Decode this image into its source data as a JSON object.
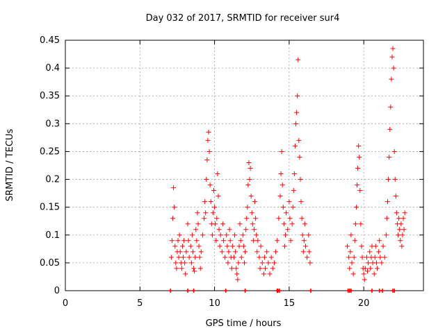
{
  "chart_data": {
    "type": "scatter",
    "title": "Day 032 of 2017, SRMTID for receiver sur4",
    "xlabel": "GPS time / hours",
    "ylabel": "SRMTID / TECUs",
    "xlim": [
      0,
      24
    ],
    "ylim": [
      0,
      0.45
    ],
    "xticks": [
      0,
      5,
      10,
      15,
      20
    ],
    "xtick_labels": [
      "0",
      "5",
      "10",
      "15",
      "20"
    ],
    "yticks": [
      0,
      0.05,
      0.1,
      0.15,
      0.2,
      0.25,
      0.3,
      0.35,
      0.4,
      0.45
    ],
    "ytick_labels": [
      "0",
      "0.05",
      "0.1",
      "0.15",
      "0.2",
      "0.25",
      "0.3",
      "0.35",
      "0.4",
      "0.45"
    ],
    "grid": true,
    "marker": "plus",
    "color": "#ff0000",
    "series": [
      {
        "name": "SRMTID",
        "points": [
          [
            7.1,
            0.06
          ],
          [
            7.15,
            0.09
          ],
          [
            7.2,
            0.13
          ],
          [
            7.25,
            0.185
          ],
          [
            7.3,
            0.15
          ],
          [
            7.35,
            0.08
          ],
          [
            7.4,
            0.05
          ],
          [
            7.45,
            0.04
          ],
          [
            7.5,
            0.07
          ],
          [
            7.55,
            0.09
          ],
          [
            7.6,
            0.06
          ],
          [
            7.65,
            0.1
          ],
          [
            7.7,
            0.07
          ],
          [
            7.75,
            0.05
          ],
          [
            7.8,
            0.04
          ],
          [
            7.85,
            0.08
          ],
          [
            7.9,
            0.06
          ],
          [
            7.95,
            0.09
          ],
          [
            8.0,
            0.05
          ],
          [
            8.05,
            0.03
          ],
          [
            8.1,
            0.07
          ],
          [
            8.2,
            0.12
          ],
          [
            8.25,
            0.09
          ],
          [
            8.3,
            0.06
          ],
          [
            8.4,
            0.08
          ],
          [
            8.45,
            0.05
          ],
          [
            8.5,
            0.1
          ],
          [
            8.55,
            0.07
          ],
          [
            8.6,
            0.04
          ],
          [
            8.65,
            0.035
          ],
          [
            8.7,
            0.06
          ],
          [
            8.75,
            0.11
          ],
          [
            8.8,
            0.09
          ],
          [
            8.85,
            0.14
          ],
          [
            8.9,
            0.12
          ],
          [
            8.95,
            0.08
          ],
          [
            9.0,
            0.06
          ],
          [
            9.05,
            0.04
          ],
          [
            9.1,
            0.07
          ],
          [
            9.2,
            0.1
          ],
          [
            9.3,
            0.13
          ],
          [
            9.35,
            0.16
          ],
          [
            9.4,
            0.14
          ],
          [
            9.45,
            0.2
          ],
          [
            9.5,
            0.235
          ],
          [
            9.55,
            0.27
          ],
          [
            9.6,
            0.285
          ],
          [
            9.65,
            0.25
          ],
          [
            9.7,
            0.19
          ],
          [
            9.75,
            0.16
          ],
          [
            9.8,
            0.12
          ],
          [
            9.85,
            0.1
          ],
          [
            9.9,
            0.14
          ],
          [
            9.95,
            0.18
          ],
          [
            10.0,
            0.15
          ],
          [
            10.05,
            0.12
          ],
          [
            10.1,
            0.09
          ],
          [
            10.15,
            0.13
          ],
          [
            10.2,
            0.21
          ],
          [
            10.25,
            0.17
          ],
          [
            10.3,
            0.11
          ],
          [
            10.35,
            0.08
          ],
          [
            10.4,
            0.1
          ],
          [
            10.5,
            0.07
          ],
          [
            10.55,
            0.12
          ],
          [
            10.6,
            0.09
          ],
          [
            10.7,
            0.06
          ],
          [
            10.8,
            0.1
          ],
          [
            10.85,
            0.08
          ],
          [
            10.9,
            0.05
          ],
          [
            10.95,
            0.07
          ],
          [
            11.0,
            0.11
          ],
          [
            11.05,
            0.09
          ],
          [
            11.1,
            0.06
          ],
          [
            11.15,
            0.04
          ],
          [
            11.2,
            0.08
          ],
          [
            11.3,
            0.06
          ],
          [
            11.35,
            0.1
          ],
          [
            11.4,
            0.07
          ],
          [
            11.45,
            0.04
          ],
          [
            11.5,
            0.03
          ],
          [
            11.55,
            0.02
          ],
          [
            11.6,
            0.05
          ],
          [
            11.65,
            0.08
          ],
          [
            11.7,
            0.12
          ],
          [
            11.75,
            0.09
          ],
          [
            11.8,
            0.06
          ],
          [
            11.9,
            0.1
          ],
          [
            11.95,
            0.08
          ],
          [
            12.0,
            0.05
          ],
          [
            12.05,
            0.07
          ],
          [
            12.1,
            0.11
          ],
          [
            12.15,
            0.13
          ],
          [
            12.2,
            0.15
          ],
          [
            12.25,
            0.19
          ],
          [
            12.3,
            0.23
          ],
          [
            12.35,
            0.2
          ],
          [
            12.4,
            0.22
          ],
          [
            12.45,
            0.17
          ],
          [
            12.5,
            0.14
          ],
          [
            12.55,
            0.12
          ],
          [
            12.6,
            0.09
          ],
          [
            12.65,
            0.11
          ],
          [
            12.7,
            0.16
          ],
          [
            12.75,
            0.13
          ],
          [
            12.8,
            0.1
          ],
          [
            12.85,
            0.07
          ],
          [
            12.9,
            0.09
          ],
          [
            13.0,
            0.06
          ],
          [
            13.05,
            0.04
          ],
          [
            13.1,
            0.08
          ],
          [
            13.2,
            0.05
          ],
          [
            13.3,
            0.03
          ],
          [
            13.35,
            0.06
          ],
          [
            13.4,
            0.04
          ],
          [
            13.5,
            0.07
          ],
          [
            13.6,
            0.05
          ],
          [
            13.7,
            0.03
          ],
          [
            13.8,
            0.06
          ],
          [
            13.9,
            0.04
          ],
          [
            14.0,
            0.05
          ],
          [
            14.1,
            0.07
          ],
          [
            14.2,
            0.09
          ],
          [
            14.3,
            0.13
          ],
          [
            14.4,
            0.17
          ],
          [
            14.45,
            0.21
          ],
          [
            14.5,
            0.25
          ],
          [
            14.55,
            0.19
          ],
          [
            14.6,
            0.15
          ],
          [
            14.65,
            0.12
          ],
          [
            14.7,
            0.08
          ],
          [
            14.75,
            0.1
          ],
          [
            14.8,
            0.14
          ],
          [
            14.9,
            0.11
          ],
          [
            15.0,
            0.16
          ],
          [
            15.05,
            0.13
          ],
          [
            15.1,
            0.09
          ],
          [
            15.2,
            0.12
          ],
          [
            15.25,
            0.15
          ],
          [
            15.3,
            0.18
          ],
          [
            15.35,
            0.21
          ],
          [
            15.4,
            0.26
          ],
          [
            15.45,
            0.3
          ],
          [
            15.5,
            0.32
          ],
          [
            15.55,
            0.35
          ],
          [
            15.6,
            0.415
          ],
          [
            15.65,
            0.27
          ],
          [
            15.7,
            0.24
          ],
          [
            15.75,
            0.2
          ],
          [
            15.8,
            0.16
          ],
          [
            15.85,
            0.13
          ],
          [
            15.9,
            0.1
          ],
          [
            15.95,
            0.07
          ],
          [
            16.0,
            0.09
          ],
          [
            16.05,
            0.12
          ],
          [
            16.1,
            0.08
          ],
          [
            16.2,
            0.06
          ],
          [
            16.3,
            0.1
          ],
          [
            16.35,
            0.07
          ],
          [
            16.4,
            0.05
          ],
          [
            18.9,
            0.08
          ],
          [
            19.0,
            0.06
          ],
          [
            19.05,
            0.04
          ],
          [
            19.1,
            0.07
          ],
          [
            19.15,
            0.1
          ],
          [
            19.2,
            0.05
          ],
          [
            19.3,
            0.03
          ],
          [
            19.35,
            0.06
          ],
          [
            19.4,
            0.09
          ],
          [
            19.45,
            0.12
          ],
          [
            19.5,
            0.15
          ],
          [
            19.55,
            0.19
          ],
          [
            19.6,
            0.22
          ],
          [
            19.65,
            0.26
          ],
          [
            19.7,
            0.24
          ],
          [
            19.75,
            0.18
          ],
          [
            19.8,
            0.12
          ],
          [
            19.85,
            0.08
          ],
          [
            19.9,
            0.06
          ],
          [
            19.95,
            0.04
          ],
          [
            20.0,
            0.03
          ],
          [
            20.05,
            0.02
          ],
          [
            20.1,
            0.04
          ],
          [
            20.2,
            0.06
          ],
          [
            20.25,
            0.035
          ],
          [
            20.3,
            0.05
          ],
          [
            20.4,
            0.07
          ],
          [
            20.45,
            0.04
          ],
          [
            20.5,
            0.06
          ],
          [
            20.55,
            0.08
          ],
          [
            20.6,
            0.05
          ],
          [
            20.7,
            0.03
          ],
          [
            20.75,
            0.06
          ],
          [
            20.8,
            0.08
          ],
          [
            20.85,
            0.05
          ],
          [
            20.9,
            0.04
          ],
          [
            21.0,
            0.07
          ],
          [
            21.05,
            0.09
          ],
          [
            21.1,
            0.06
          ],
          [
            21.2,
            0.05
          ],
          [
            21.3,
            0.08
          ],
          [
            21.4,
            0.06
          ],
          [
            21.5,
            0.1
          ],
          [
            21.55,
            0.13
          ],
          [
            21.6,
            0.16
          ],
          [
            21.65,
            0.2
          ],
          [
            21.7,
            0.24
          ],
          [
            21.75,
            0.29
          ],
          [
            21.8,
            0.33
          ],
          [
            21.85,
            0.38
          ],
          [
            21.9,
            0.42
          ],
          [
            21.95,
            0.435
          ],
          [
            22.0,
            0.4
          ],
          [
            22.05,
            0.25
          ],
          [
            22.1,
            0.2
          ],
          [
            22.15,
            0.17
          ],
          [
            22.2,
            0.14
          ],
          [
            22.25,
            0.12
          ],
          [
            22.3,
            0.1
          ],
          [
            22.35,
            0.13
          ],
          [
            22.4,
            0.11
          ],
          [
            22.45,
            0.09
          ],
          [
            22.5,
            0.12
          ],
          [
            22.55,
            0.08
          ],
          [
            22.6,
            0.1
          ],
          [
            22.65,
            0.13
          ],
          [
            22.7,
            0.11
          ],
          [
            22.75,
            0.14
          ]
        ],
        "baseline_markers_x": [
          7.05,
          8.2,
          8.6,
          10.75,
          12.05,
          14.2,
          14.25,
          14.35,
          16.45,
          18.95,
          19.05,
          19.15,
          20.55,
          21.05,
          21.25,
          21.95,
          22.05
        ]
      }
    ]
  }
}
